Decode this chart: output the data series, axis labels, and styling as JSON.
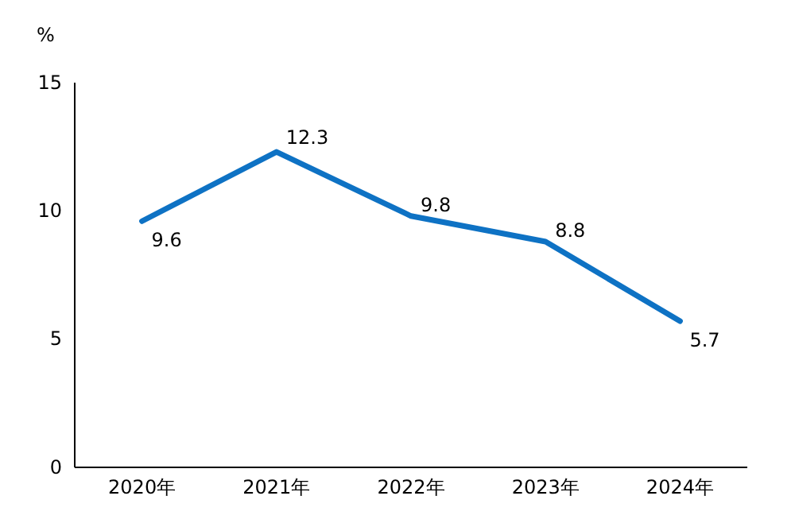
{
  "chart_data": {
    "type": "line",
    "ylabel": "%",
    "categories": [
      "2020年",
      "2021年",
      "2022年",
      "2023年",
      "2024年"
    ],
    "series": [
      {
        "color": "#0e72c4",
        "values": [
          9.6,
          12.3,
          9.8,
          8.8,
          5.7
        ]
      }
    ],
    "ylim": [
      0,
      15
    ],
    "yticks": [
      0,
      5,
      10,
      15
    ],
    "data_labels": true,
    "grid": false,
    "marker": "none",
    "line_style": "solid"
  }
}
